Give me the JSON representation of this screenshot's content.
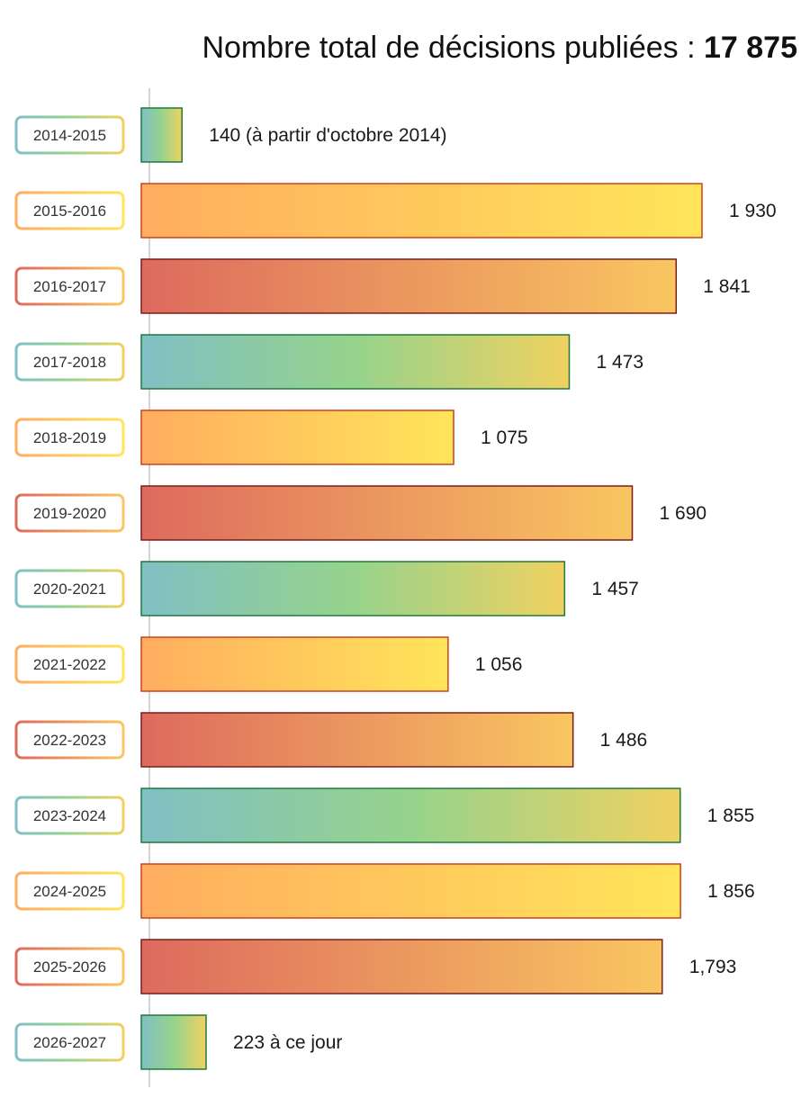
{
  "title": {
    "text": "Nombre total de décisions publiées : ",
    "total": "17 875"
  },
  "colors": {
    "teal_green": [
      "#80bfc4",
      "#96d38c",
      "#f0d160"
    ],
    "orange_yellow": [
      "#ffad5f",
      "#ffe55a"
    ],
    "red_orange": [
      "#dd6a5e",
      "#f9c660"
    ],
    "border_green": "#1e7a3e",
    "border_orange": "#c9431e",
    "border_red": "#7a1d1d",
    "axis": "#aaaaaa"
  },
  "chart_data": {
    "type": "bar",
    "orientation": "horizontal",
    "title": "Nombre total de décisions publiées : 17 875",
    "xlabel": "",
    "ylabel": "",
    "xlim": [
      0,
      1930
    ],
    "grid": false,
    "categories": [
      "2014-2015",
      "2015-2016",
      "2016-2017",
      "2017-2018",
      "2018-2019",
      "2019-2020",
      "2020-2021",
      "2021-2022",
      "2022-2023",
      "2023-2024",
      "2024-2025",
      "2025-2026",
      "2026-2027"
    ],
    "values": [
      140,
      1930,
      1841,
      1473,
      1075,
      1690,
      1457,
      1056,
      1486,
      1855,
      1856,
      1793,
      223
    ],
    "labels": [
      "140 (à partir d'octobre 2014)",
      "1 930",
      "1 841",
      "1 473",
      "1 075",
      "1 690",
      "1 457",
      "1 056",
      "1 486",
      "1 855",
      "1 856",
      "1,793",
      "223 à ce jour"
    ],
    "palette": [
      "teal_green",
      "orange_yellow",
      "red_orange",
      "teal_green",
      "orange_yellow",
      "red_orange",
      "teal_green",
      "orange_yellow",
      "red_orange",
      "teal_green",
      "orange_yellow",
      "red_orange",
      "teal_green"
    ]
  }
}
